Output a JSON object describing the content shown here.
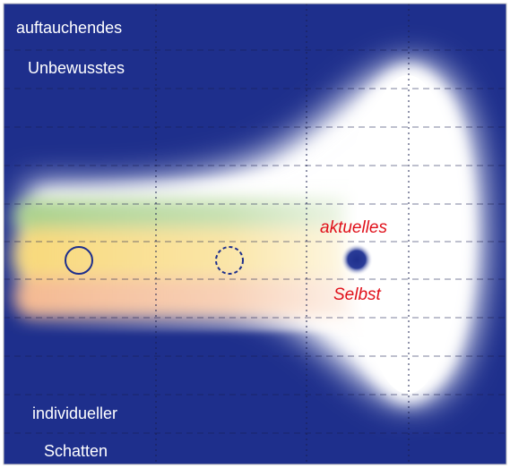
{
  "labels": {
    "top_line1": "auftauchendes",
    "top_line2": "Unbewusstes",
    "bottom_line1": "individueller",
    "bottom_line2": "Schatten",
    "self_line1": "aktuelles",
    "self_line2": "Selbst"
  },
  "colors": {
    "background": "#1e2f8c",
    "light_core": "#ffffff",
    "green_band": "#a8d08a",
    "yellow_band": "#f8d878",
    "peach_band": "#f4b890",
    "red_text": "#e0101a",
    "circle_stroke": "#1e2f8c"
  }
}
